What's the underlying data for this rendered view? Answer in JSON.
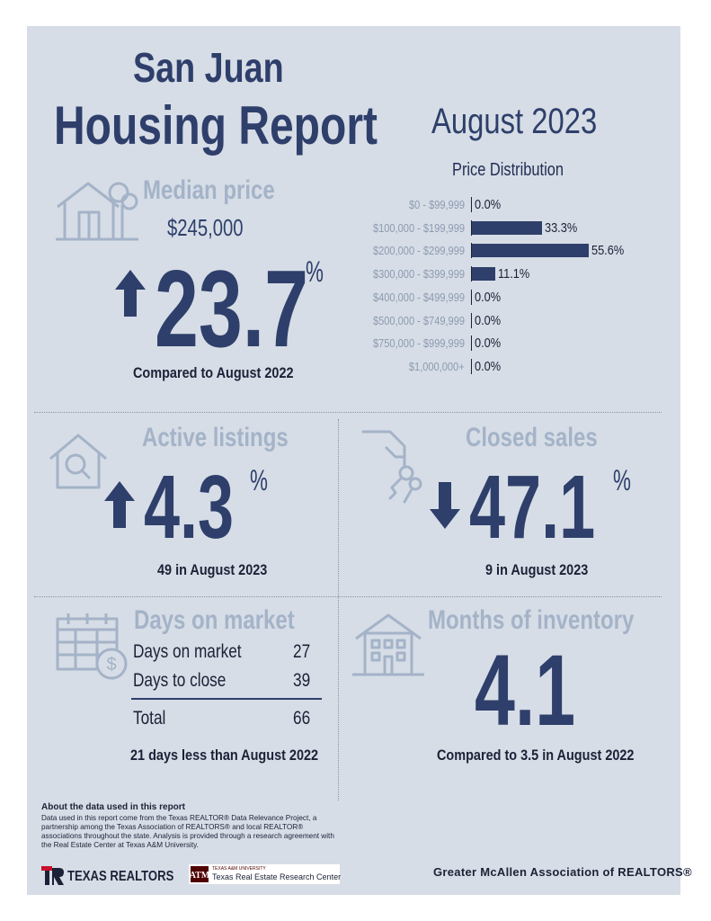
{
  "header": {
    "city": "San Juan",
    "report": "Housing Report",
    "month": "August 2023"
  },
  "median": {
    "title": "Median price",
    "price": "$245,000",
    "change": "23.7",
    "pct": "%",
    "direction": "up",
    "caption": "Compared to August 2022"
  },
  "distribution": {
    "title": "Price Distribution",
    "chart_data": {
      "type": "bar",
      "categories": [
        "$0 - $99,999",
        "$100,000 - $199,999",
        "$200,000 - $299,999",
        "$300,000 - $399,999",
        "$400,000 - $499,999",
        "$500,000 - $749,999",
        "$750,000 - $999,999",
        "$1,000,000+"
      ],
      "values": [
        0.0,
        33.3,
        55.6,
        11.1,
        0.0,
        0.0,
        0.0,
        0.0
      ],
      "labels": [
        "0.0%",
        "33.3%",
        "55.6%",
        "11.1%",
        "0.0%",
        "0.0%",
        "0.0%",
        "0.0%"
      ],
      "orientation": "horizontal"
    }
  },
  "active": {
    "title": "Active listings",
    "change": "4.3",
    "pct": "%",
    "direction": "up",
    "caption": "49 in August 2023"
  },
  "closed": {
    "title": "Closed sales",
    "change": "47.1",
    "pct": "%",
    "direction": "down",
    "caption": "9 in August 2023"
  },
  "dom": {
    "title": "Days on market",
    "rows": [
      {
        "label": "Days on market",
        "value": "27"
      },
      {
        "label": "Days to close",
        "value": "39"
      }
    ],
    "total_label": "Total",
    "total_value": "66",
    "caption": "21 days less than August 2022"
  },
  "inventory": {
    "title": "Months of inventory",
    "value": "4.1",
    "caption": "Compared to 3.5 in August 2022"
  },
  "footer": {
    "about_title": "About the data used in this report",
    "about_text": "Data used in this report come from the Texas REALTOR® Data Relevance Project, a partnership among the Texas Association of REALTORS® and local REALTOR® associations throughout the state. Analysis is provided through a research agreement with the Real Estate Center at Texas A&M University.",
    "texas_realtors_logo": "TEXAS REALTORS",
    "tamu_small": "TEXAS A&M UNIVERSITY",
    "tamu_name": "Texas Real Estate Research Center",
    "association": "Greater McAllen Association of REALTORS®"
  },
  "colors": {
    "panel": "#d6dde6",
    "navy": "#2f3f6b",
    "muted": "#a4b3c8",
    "red": "#c8102e",
    "maroon": "#500000"
  }
}
